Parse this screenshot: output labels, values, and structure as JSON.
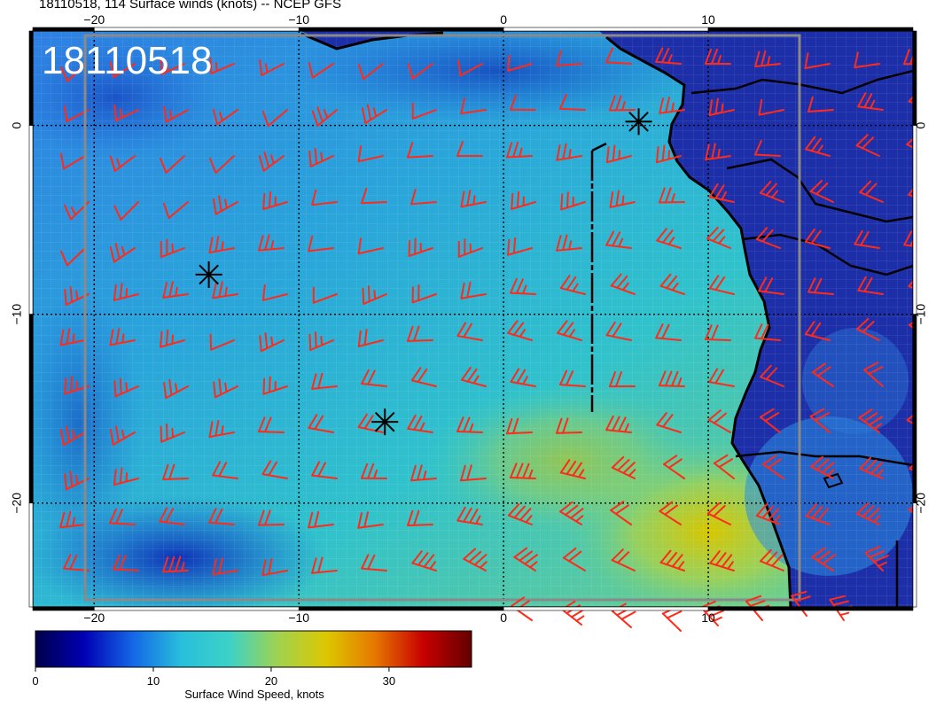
{
  "header": {
    "title": "18110518, 114 Surface winds (knots) -- NCEP GFS"
  },
  "map": {
    "timestamp_overlay": "18110518",
    "lon_range": [
      -23,
      20
    ],
    "lat_range": [
      -25.5,
      5
    ],
    "lon_ticks": [
      {
        "value": -20,
        "label": "−20"
      },
      {
        "value": -10,
        "label": "−10"
      },
      {
        "value": 0,
        "label": "0"
      },
      {
        "value": 10,
        "label": "10"
      }
    ],
    "lat_ticks": [
      {
        "value": 0,
        "label": "0"
      },
      {
        "value": -10,
        "label": "−10"
      },
      {
        "value": -20,
        "label": "−20"
      }
    ],
    "storm_markers": [
      {
        "lon": 6.6,
        "lat": 0.2
      },
      {
        "lon": -14.4,
        "lat": -7.9
      },
      {
        "lon": -5.8,
        "lat": -15.7
      }
    ],
    "barb_color": "#ff2a1a",
    "land_color": "#1d2fa8"
  },
  "colorbar": {
    "title": "Surface Wind Speed, knots",
    "min": 0,
    "max": 37,
    "ticks": [
      {
        "value": 0,
        "label": "0"
      },
      {
        "value": 10,
        "label": "10"
      },
      {
        "value": 20,
        "label": "20"
      },
      {
        "value": 30,
        "label": "30"
      }
    ],
    "colors": [
      "#00004a",
      "#0000b4",
      "#1466e6",
      "#28bedc",
      "#3cd2c8",
      "#a0d250",
      "#dcc800",
      "#e67800",
      "#c80000",
      "#640000"
    ]
  }
}
